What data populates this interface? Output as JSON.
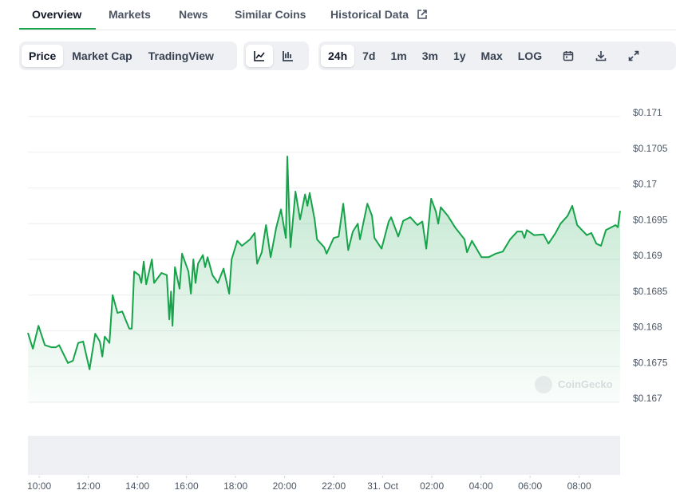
{
  "tabs": [
    "Overview",
    "Markets",
    "News",
    "Similar Coins",
    "Historical Data"
  ],
  "active_tab": 0,
  "chart_modes": [
    "Price",
    "Market Cap",
    "TradingView"
  ],
  "active_mode": 0,
  "ranges": [
    "24h",
    "7d",
    "1m",
    "3m",
    "1y",
    "Max",
    "LOG"
  ],
  "active_range": 0,
  "chart_data": {
    "type": "line",
    "watermark": "CoinGecko",
    "color": "#16a34a",
    "x": [
      9.54,
      9.74,
      9.97,
      10.23,
      10.49,
      10.68,
      10.81,
      11.17,
      11.37,
      11.59,
      11.79,
      12.05,
      12.28,
      12.47,
      12.57,
      12.67,
      12.86,
      12.99,
      13.19,
      13.38,
      13.67,
      13.77,
      13.87,
      14.07,
      14.16,
      14.26,
      14.36,
      14.59,
      14.68,
      14.98,
      15.2,
      15.3,
      15.37,
      15.43,
      15.53,
      15.72,
      15.82,
      16.08,
      16.18,
      16.28,
      16.37,
      16.47,
      16.67,
      16.76,
      16.86,
      17.06,
      17.28,
      17.51,
      17.74,
      17.84,
      18.07,
      18.26,
      18.59,
      18.78,
      18.88,
      19.07,
      19.24,
      19.43,
      19.66,
      19.85,
      20.05,
      20.11,
      20.18,
      20.24,
      20.44,
      20.63,
      20.83,
      20.93,
      21.02,
      21.22,
      21.32,
      21.61,
      21.71,
      22.0,
      22.2,
      22.39,
      22.59,
      22.78,
      22.98,
      23.07,
      23.37,
      23.56,
      23.66,
      23.95,
      24.24,
      24.34,
      24.63,
      24.83,
      25.12,
      25.41,
      25.61,
      25.77,
      25.97,
      26.16,
      26.26,
      26.36,
      26.65,
      26.94,
      27.33,
      27.43,
      27.63,
      28.02,
      28.31,
      28.6,
      28.89,
      29.19,
      29.48,
      29.67,
      29.77,
      29.87,
      30.16,
      30.55,
      30.75,
      31.04,
      31.24,
      31.53,
      31.72,
      31.92,
      32.31,
      32.5,
      32.7,
      32.89,
      33.09,
      33.48,
      33.58,
      33.67
    ],
    "values": [
      0.16797,
      0.16775,
      0.16807,
      0.1678,
      0.16777,
      0.16777,
      0.1678,
      0.16755,
      0.16758,
      0.16783,
      0.16785,
      0.16746,
      0.16796,
      0.16785,
      0.16764,
      0.16792,
      0.16783,
      0.1685,
      0.16825,
      0.16827,
      0.16803,
      0.16803,
      0.16883,
      0.16878,
      0.16867,
      0.16897,
      0.16865,
      0.169,
      0.16867,
      0.16881,
      0.16878,
      0.16816,
      0.16855,
      0.16807,
      0.16889,
      0.16859,
      0.16908,
      0.16883,
      0.16852,
      0.169,
      0.16867,
      0.16894,
      0.16906,
      0.16889,
      0.16903,
      0.16878,
      0.16867,
      0.16887,
      0.16852,
      0.169,
      0.16926,
      0.16919,
      0.16928,
      0.16937,
      0.16894,
      0.1691,
      0.16948,
      0.16903,
      0.16945,
      0.1697,
      0.1693,
      0.17044,
      0.1697,
      0.16917,
      0.16995,
      0.16956,
      0.16991,
      0.16975,
      0.16993,
      0.16956,
      0.16928,
      0.16917,
      0.16908,
      0.1693,
      0.16932,
      0.16978,
      0.16913,
      0.16939,
      0.1695,
      0.16928,
      0.16978,
      0.16961,
      0.1693,
      0.16915,
      0.16953,
      0.16959,
      0.16932,
      0.16954,
      0.16959,
      0.16948,
      0.16953,
      0.16915,
      0.16985,
      0.16967,
      0.1695,
      0.16973,
      0.16961,
      0.16945,
      0.16928,
      0.1691,
      0.16926,
      0.16903,
      0.16903,
      0.16908,
      0.16911,
      0.16928,
      0.16939,
      0.16939,
      0.1693,
      0.16941,
      0.16934,
      0.16935,
      0.16922,
      0.16937,
      0.1695,
      0.16961,
      0.16975,
      0.16948,
      0.16934,
      0.16937,
      0.16922,
      0.16919,
      0.16941,
      0.16948,
      0.16945,
      0.16968
    ],
    "xlim": [
      9.54,
      33.67
    ],
    "xticks": [
      {
        "value": 10,
        "label": "10:00"
      },
      {
        "value": 12,
        "label": "12:00"
      },
      {
        "value": 14,
        "label": "14:00"
      },
      {
        "value": 16,
        "label": "16:00"
      },
      {
        "value": 18,
        "label": "18:00"
      },
      {
        "value": 20,
        "label": "20:00"
      },
      {
        "value": 22,
        "label": "22:00"
      },
      {
        "value": 24,
        "label": "31. Oct"
      },
      {
        "value": 26,
        "label": "02:00"
      },
      {
        "value": 28,
        "label": "04:00"
      },
      {
        "value": 30,
        "label": "06:00"
      },
      {
        "value": 32,
        "label": "08:00"
      }
    ],
    "ylim": [
      0.167,
      0.171
    ],
    "yticks": [
      {
        "value": 0.171,
        "label": "$0.171"
      },
      {
        "value": 0.1705,
        "label": "$0.1705"
      },
      {
        "value": 0.17,
        "label": "$0.17"
      },
      {
        "value": 0.1695,
        "label": "$0.1695"
      },
      {
        "value": 0.169,
        "label": "$0.169"
      },
      {
        "value": 0.1685,
        "label": "$0.1685"
      },
      {
        "value": 0.168,
        "label": "$0.168"
      },
      {
        "value": 0.1675,
        "label": "$0.1675"
      },
      {
        "value": 0.167,
        "label": "$0.167"
      }
    ],
    "grid": true
  }
}
